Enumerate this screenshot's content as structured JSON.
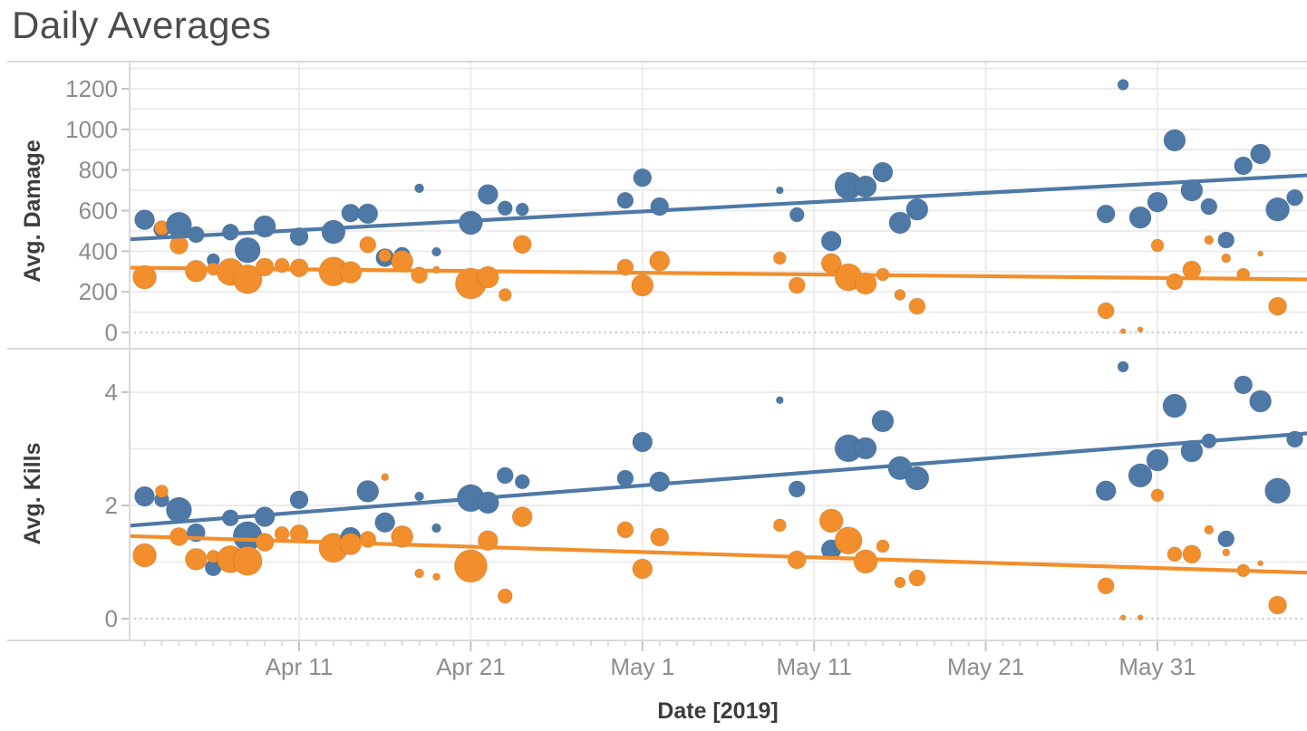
{
  "chart_data": {
    "type": "scatter",
    "title": "Daily Averages",
    "xlabel": "Date [2019]",
    "x_tick_labels": [
      "Apr 11",
      "Apr 21",
      "May 1",
      "May 11",
      "May 21",
      "May 31"
    ],
    "x_domain_days": [
      "Apr 1",
      "Jun 9"
    ],
    "legend": "none",
    "styles": {
      "series_blue": "#4E79A7",
      "series_orange": "#F28E2B",
      "tick_label_color": "#8d8d8d",
      "axis_title_color": "#3d3d3d",
      "title_color": "#4c4c4c",
      "grid_color": "#ececec",
      "border_color": "#d9d9d9",
      "zero_line_color": "#c9c9c9",
      "minor_tick_color": "#dcdcdc",
      "major_tick_color": "#c4c4c4"
    },
    "panels": [
      {
        "ylabel": "Avg. Damage",
        "ylim": [
          0,
          1330
        ],
        "yticks": [
          0,
          200,
          400,
          600,
          800,
          1000,
          1200
        ],
        "grid_step": 100,
        "series": [
          {
            "name": "series-blue",
            "color": "#4E79A7",
            "trend": {
              "x": [
                "Apr 1",
                "Jun 9"
              ],
              "y": [
                458,
                775
              ]
            },
            "points": [
              [
                "Apr 2",
                555,
                11
              ],
              [
                "Apr 3",
                508,
                9
              ],
              [
                "Apr 4",
                530,
                14
              ],
              [
                "Apr 5",
                482,
                9
              ],
              [
                "Apr 6",
                357,
                7
              ],
              [
                "Apr 7",
                494,
                9
              ],
              [
                "Apr 8",
                405,
                14
              ],
              [
                "Apr 9",
                522,
                12
              ],
              [
                "Apr 11",
                472,
                10
              ],
              [
                "Apr 13",
                495,
                13
              ],
              [
                "Apr 14",
                588,
                10
              ],
              [
                "Apr 15",
                585,
                11
              ],
              [
                "Apr 16",
                368,
                10
              ],
              [
                "Apr 17",
                380,
                9
              ],
              [
                "Apr 18",
                710,
                5
              ],
              [
                "Apr 19",
                397,
                5
              ],
              [
                "Apr 21",
                540,
                13
              ],
              [
                "Apr 22",
                680,
                11
              ],
              [
                "Apr 23",
                612,
                8
              ],
              [
                "Apr 24",
                606,
                7
              ],
              [
                "Apr 30",
                650,
                9
              ],
              [
                "May 1",
                762,
                10
              ],
              [
                "May 2",
                620,
                10
              ],
              [
                "May 9",
                700,
                4
              ],
              [
                "May 10",
                580,
                8
              ],
              [
                "May 12",
                450,
                11
              ],
              [
                "May 13",
                722,
                15
              ],
              [
                "May 14",
                718,
                12
              ],
              [
                "May 15",
                789,
                11
              ],
              [
                "May 16",
                540,
                12
              ],
              [
                "May 17",
                606,
                12
              ],
              [
                "May 28",
                584,
                10
              ],
              [
                "May 29",
                1220,
                6
              ],
              [
                "May 30",
                566,
                12
              ],
              [
                "May 31",
                642,
                11
              ],
              [
                "Jun 1",
                946,
                12
              ],
              [
                "Jun 2",
                700,
                12
              ],
              [
                "Jun 3",
                620,
                9
              ],
              [
                "Jun 4",
                455,
                9
              ],
              [
                "Jun 5",
                821,
                10
              ],
              [
                "Jun 6",
                879,
                11
              ],
              [
                "Jun 7",
                606,
                13
              ],
              [
                "Jun 8",
                664,
                9
              ]
            ]
          },
          {
            "name": "series-orange",
            "color": "#F28E2B",
            "trend": {
              "x": [
                "Apr 1",
                "Jun 9"
              ],
              "y": [
                319,
                261
              ]
            },
            "points": [
              [
                "Apr 2",
                272,
                13
              ],
              [
                "Apr 3",
                515,
                8
              ],
              [
                "Apr 4",
                430,
                10
              ],
              [
                "Apr 5",
                302,
                12
              ],
              [
                "Apr 6",
                312,
                7
              ],
              [
                "Apr 7",
                298,
                15
              ],
              [
                "Apr 8",
                262,
                16
              ],
              [
                "Apr 9",
                322,
                10
              ],
              [
                "Apr 10",
                330,
                8
              ],
              [
                "Apr 11",
                318,
                10
              ],
              [
                "Apr 13",
                300,
                16
              ],
              [
                "Apr 14",
                296,
                12
              ],
              [
                "Apr 15",
                432,
                9
              ],
              [
                "Apr 16",
                378,
                7
              ],
              [
                "Apr 17",
                350,
                12
              ],
              [
                "Apr 18",
                282,
                9
              ],
              [
                "Apr 19",
                308,
                4
              ],
              [
                "Apr 21",
                241,
                17
              ],
              [
                "Apr 22",
                272,
                12
              ],
              [
                "Apr 23",
                185,
                7
              ],
              [
                "Apr 24",
                434,
                10
              ],
              [
                "Apr 30",
                321,
                9
              ],
              [
                "May 1",
                232,
                12
              ],
              [
                "May 2",
                352,
                11
              ],
              [
                "May 9",
                366,
                7
              ],
              [
                "May 10",
                232,
                9
              ],
              [
                "May 12",
                340,
                11
              ],
              [
                "May 13",
                272,
                15
              ],
              [
                "May 14",
                241,
                12
              ],
              [
                "May 15",
                285,
                7
              ],
              [
                "May 16",
                185,
                6
              ],
              [
                "May 17",
                129,
                9
              ],
              [
                "May 28",
                107,
                9
              ],
              [
                "May 29",
                6,
                3
              ],
              [
                "May 30",
                14,
                3
              ],
              [
                "May 31",
                428,
                7
              ],
              [
                "Jun 1",
                250,
                9
              ],
              [
                "Jun 2",
                308,
                10
              ],
              [
                "Jun 3",
                455,
                5
              ],
              [
                "Jun 4",
                366,
                5
              ],
              [
                "Jun 5",
                285,
                7
              ],
              [
                "Jun 6",
                388,
                3
              ],
              [
                "Jun 7",
                129,
                10
              ]
            ]
          }
        ]
      },
      {
        "ylabel": "Avg. Kills",
        "ylim": [
          0,
          4.75
        ],
        "yticks": [
          0,
          2,
          4
        ],
        "grid_step": 1,
        "series": [
          {
            "name": "series-blue",
            "color": "#4E79A7",
            "trend": {
              "x": [
                "Apr 1",
                "Jun 9"
              ],
              "y": [
                1.64,
                3.28
              ]
            },
            "points": [
              [
                "Apr 2",
                2.16,
                11
              ],
              [
                "Apr 3",
                2.1,
                8
              ],
              [
                "Apr 4",
                1.92,
                14
              ],
              [
                "Apr 5",
                1.52,
                10
              ],
              [
                "Apr 6",
                0.9,
                9
              ],
              [
                "Apr 7",
                1.78,
                9
              ],
              [
                "Apr 8",
                1.46,
                16
              ],
              [
                "Apr 9",
                1.8,
                11
              ],
              [
                "Apr 11",
                2.1,
                10
              ],
              [
                "Apr 13",
                1.3,
                13
              ],
              [
                "Apr 14",
                1.44,
                11
              ],
              [
                "Apr 15",
                2.25,
                12
              ],
              [
                "Apr 16",
                1.7,
                11
              ],
              [
                "Apr 17",
                1.42,
                9
              ],
              [
                "Apr 18",
                2.16,
                5
              ],
              [
                "Apr 19",
                1.6,
                5
              ],
              [
                "Apr 21",
                2.13,
                15
              ],
              [
                "Apr 22",
                2.05,
                12
              ],
              [
                "Apr 23",
                2.53,
                9
              ],
              [
                "Apr 24",
                2.42,
                8
              ],
              [
                "Apr 30",
                2.48,
                9
              ],
              [
                "May 1",
                3.12,
                11
              ],
              [
                "May 2",
                2.42,
                11
              ],
              [
                "May 9",
                3.86,
                4
              ],
              [
                "May 10",
                2.29,
                9
              ],
              [
                "May 12",
                1.22,
                11
              ],
              [
                "May 13",
                3.01,
                15
              ],
              [
                "May 14",
                3.01,
                12
              ],
              [
                "May 15",
                3.49,
                12
              ],
              [
                "May 16",
                2.66,
                13
              ],
              [
                "May 17",
                2.48,
                13
              ],
              [
                "May 28",
                2.26,
                11
              ],
              [
                "May 29",
                4.45,
                6
              ],
              [
                "May 30",
                2.53,
                13
              ],
              [
                "May 31",
                2.8,
                12
              ],
              [
                "Jun 1",
                3.76,
                13
              ],
              [
                "Jun 2",
                2.96,
                12
              ],
              [
                "Jun 3",
                3.14,
                8
              ],
              [
                "Jun 4",
                1.41,
                9
              ],
              [
                "Jun 5",
                4.13,
                10
              ],
              [
                "Jun 6",
                3.84,
                12
              ],
              [
                "Jun 7",
                2.26,
                14
              ],
              [
                "Jun 8",
                3.17,
                9
              ]
            ]
          },
          {
            "name": "series-orange",
            "color": "#F28E2B",
            "trend": {
              "x": [
                "Apr 1",
                "Jun 9"
              ],
              "y": [
                1.46,
                0.81
              ]
            },
            "points": [
              [
                "Apr 2",
                1.12,
                13
              ],
              [
                "Apr 3",
                2.25,
                7
              ],
              [
                "Apr 4",
                1.45,
                10
              ],
              [
                "Apr 5",
                1.05,
                12
              ],
              [
                "Apr 6",
                1.1,
                7
              ],
              [
                "Apr 7",
                1.05,
                15
              ],
              [
                "Apr 8",
                1.02,
                16
              ],
              [
                "Apr 9",
                1.35,
                10
              ],
              [
                "Apr 10",
                1.5,
                8
              ],
              [
                "Apr 11",
                1.5,
                10
              ],
              [
                "Apr 13",
                1.25,
                16
              ],
              [
                "Apr 14",
                1.32,
                12
              ],
              [
                "Apr 15",
                1.4,
                9
              ],
              [
                "Apr 16",
                2.5,
                4
              ],
              [
                "Apr 17",
                1.45,
                12
              ],
              [
                "Apr 18",
                0.8,
                5
              ],
              [
                "Apr 19",
                0.74,
                4
              ],
              [
                "Apr 21",
                0.93,
                18
              ],
              [
                "Apr 22",
                1.38,
                11
              ],
              [
                "Apr 23",
                0.4,
                8
              ],
              [
                "Apr 24",
                1.8,
                11
              ],
              [
                "Apr 30",
                1.57,
                9
              ],
              [
                "May 1",
                0.88,
                11
              ],
              [
                "May 2",
                1.44,
                10
              ],
              [
                "May 9",
                1.65,
                7
              ],
              [
                "May 10",
                1.04,
                10
              ],
              [
                "May 12",
                1.73,
                13
              ],
              [
                "May 13",
                1.38,
                15
              ],
              [
                "May 14",
                1.01,
                13
              ],
              [
                "May 15",
                1.28,
                7
              ],
              [
                "May 16",
                0.64,
                6
              ],
              [
                "May 17",
                0.72,
                9
              ],
              [
                "May 28",
                0.58,
                9
              ],
              [
                "May 29",
                0.02,
                3
              ],
              [
                "May 30",
                0.02,
                3
              ],
              [
                "May 31",
                2.18,
                7
              ],
              [
                "Jun 1",
                1.14,
                8
              ],
              [
                "Jun 2",
                1.14,
                10
              ],
              [
                "Jun 3",
                1.57,
                5
              ],
              [
                "Jun 4",
                1.17,
                4
              ],
              [
                "Jun 5",
                0.85,
                7
              ],
              [
                "Jun 6",
                0.98,
                3
              ],
              [
                "Jun 7",
                0.24,
                10
              ]
            ]
          }
        ]
      }
    ]
  }
}
